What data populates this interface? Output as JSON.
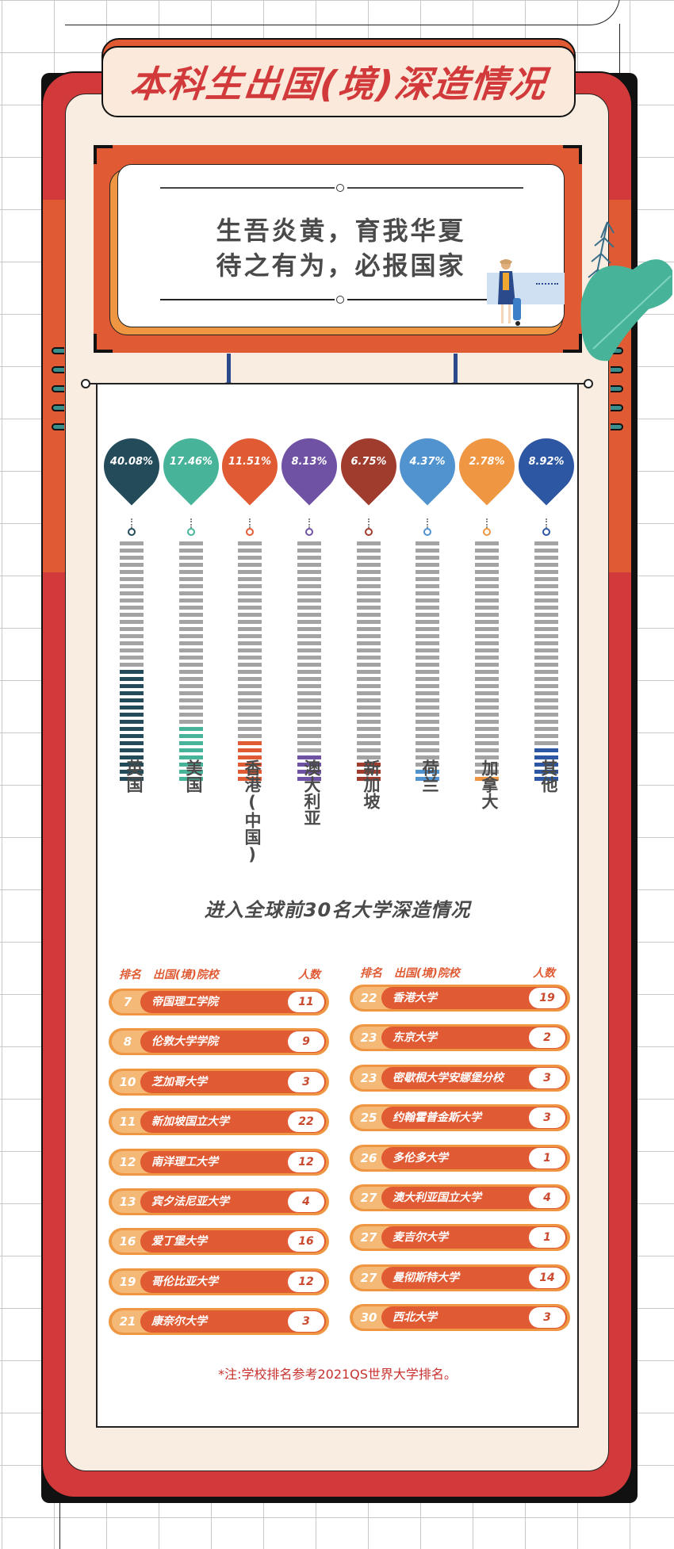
{
  "page": {
    "title": "本科生出国(境)深造情况",
    "slogan_line1": "生吾炎黄，育我华夏",
    "slogan_line2": "待之有为，必报国家",
    "section_title": "进入全球前30名大学深造情况",
    "note": "*注:学校排名参考2021QS世界大学排名。"
  },
  "colors": {
    "frame_red": "#d2393a",
    "frame_orange": "#e05a33",
    "cream": "#f9ece0",
    "row_orange": "#e05a33",
    "row_light": "#ef9642",
    "bar_gray": "#a3a3a3",
    "text_dark": "#4a4a4a"
  },
  "chart_data": {
    "type": "bar",
    "title": "本科生出国(境)深造情况",
    "unit": "%",
    "categories": [
      "英国",
      "美国",
      "香港(中国)",
      "澳大利亚",
      "新加坡",
      "荷兰",
      "加拿大",
      "其他"
    ],
    "values": [
      40.08,
      17.46,
      11.51,
      8.13,
      6.75,
      4.37,
      2.78,
      8.92
    ],
    "labels": [
      "40.08%",
      "17.46%",
      "11.51%",
      "8.13%",
      "6.75%",
      "4.37%",
      "2.78%",
      "8.92%"
    ],
    "series_colors": [
      "#234b5a",
      "#47b49a",
      "#e05a33",
      "#6f52a3",
      "#a03c2d",
      "#5193cf",
      "#ef9642",
      "#2d56a3"
    ],
    "bar_segments_total": 34,
    "bar_segments_filled": [
      16,
      8,
      6,
      4,
      3,
      2,
      1,
      5
    ],
    "orientation": "vertical",
    "grid": false,
    "legend": "none"
  },
  "table": {
    "headers": {
      "rank": "排名",
      "school": "出国(境)院校",
      "count": "人数"
    },
    "left": [
      {
        "rank": "7",
        "school": "帝国理工学院",
        "count": "11"
      },
      {
        "rank": "8",
        "school": "伦敦大学学院",
        "count": "9"
      },
      {
        "rank": "10",
        "school": "芝加哥大学",
        "count": "3"
      },
      {
        "rank": "11",
        "school": "新加坡国立大学",
        "count": "22"
      },
      {
        "rank": "12",
        "school": "南洋理工大学",
        "count": "12"
      },
      {
        "rank": "13",
        "school": "宾夕法尼亚大学",
        "count": "4"
      },
      {
        "rank": "16",
        "school": "爱丁堡大学",
        "count": "16"
      },
      {
        "rank": "19",
        "school": "哥伦比亚大学",
        "count": "12"
      },
      {
        "rank": "21",
        "school": "康奈尔大学",
        "count": "3"
      }
    ],
    "right": [
      {
        "rank": "22",
        "school": "香港大学",
        "count": "19"
      },
      {
        "rank": "23",
        "school": "东京大学",
        "count": "2"
      },
      {
        "rank": "23",
        "school": "密歇根大学安娜堡分校",
        "count": "3"
      },
      {
        "rank": "25",
        "school": "约翰霍普金斯大学",
        "count": "3"
      },
      {
        "rank": "26",
        "school": "多伦多大学",
        "count": "1"
      },
      {
        "rank": "27",
        "school": "澳大利亚国立大学",
        "count": "4"
      },
      {
        "rank": "27",
        "school": "麦吉尔大学",
        "count": "1"
      },
      {
        "rank": "27",
        "school": "曼彻斯特大学",
        "count": "14"
      },
      {
        "rank": "30",
        "school": "西北大学",
        "count": "3"
      }
    ]
  }
}
